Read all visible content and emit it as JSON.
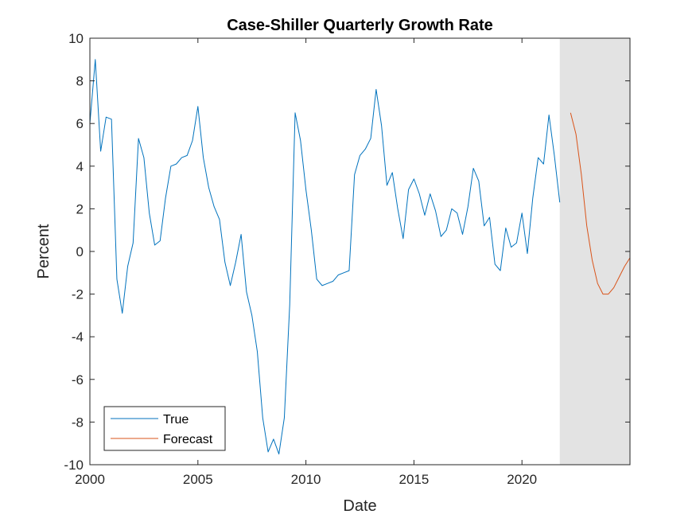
{
  "chart_data": {
    "type": "line",
    "title": "Case-Shiller Quarterly Growth Rate",
    "xlabel": "Date",
    "ylabel": "Percent",
    "xlim": [
      2000,
      2025
    ],
    "ylim": [
      -10,
      10
    ],
    "xticks": [
      2000,
      2005,
      2010,
      2015,
      2020
    ],
    "xtick_labels": [
      "2000",
      "2005",
      "2010",
      "2015",
      "2020"
    ],
    "yticks": [
      -10,
      -8,
      -6,
      -4,
      -2,
      0,
      2,
      4,
      6,
      8,
      10
    ],
    "ytick_labels": [
      "-10",
      "-8",
      "-6",
      "-4",
      "-2",
      "0",
      "2",
      "4",
      "6",
      "8",
      "10"
    ],
    "grid": false,
    "legend_position": "bottom-left",
    "forecast_region": {
      "x_start": 2021.75,
      "x_end": 2025,
      "color": "#e3e3e3"
    },
    "series": [
      {
        "name": "True",
        "color": "#0072bd",
        "x": [
          2000.0,
          2000.25,
          2000.5,
          2000.75,
          2001.0,
          2001.25,
          2001.5,
          2001.75,
          2002.0,
          2002.25,
          2002.5,
          2002.75,
          2003.0,
          2003.25,
          2003.5,
          2003.75,
          2004.0,
          2004.25,
          2004.5,
          2004.75,
          2005.0,
          2005.25,
          2005.5,
          2005.75,
          2006.0,
          2006.25,
          2006.5,
          2006.75,
          2007.0,
          2007.25,
          2007.5,
          2007.75,
          2008.0,
          2008.25,
          2008.5,
          2008.75,
          2009.0,
          2009.25,
          2009.5,
          2009.75,
          2010.0,
          2010.25,
          2010.5,
          2010.75,
          2011.0,
          2011.25,
          2011.5,
          2011.75,
          2012.0,
          2012.25,
          2012.5,
          2012.75,
          2013.0,
          2013.25,
          2013.5,
          2013.75,
          2014.0,
          2014.25,
          2014.5,
          2014.75,
          2015.0,
          2015.25,
          2015.5,
          2015.75,
          2016.0,
          2016.25,
          2016.5,
          2016.75,
          2017.0,
          2017.25,
          2017.5,
          2017.75,
          2018.0,
          2018.25,
          2018.5,
          2018.75,
          2019.0,
          2019.25,
          2019.5,
          2019.75,
          2020.0,
          2020.25,
          2020.5,
          2020.75,
          2021.0,
          2021.25,
          2021.5,
          2021.75
        ],
        "values": [
          6.0,
          9.0,
          4.7,
          6.3,
          6.2,
          -1.3,
          -2.9,
          -0.7,
          0.4,
          5.3,
          4.4,
          1.8,
          0.3,
          0.5,
          2.5,
          4.0,
          4.1,
          4.4,
          4.5,
          5.2,
          6.8,
          4.4,
          3.0,
          2.1,
          1.5,
          -0.5,
          -1.6,
          -0.5,
          0.8,
          -1.9,
          -3.0,
          -4.7,
          -7.8,
          -9.4,
          -8.8,
          -9.5,
          -7.8,
          -2.5,
          6.5,
          5.2,
          2.9,
          1.0,
          -1.3,
          -1.6,
          -1.5,
          -1.4,
          -1.1,
          -1.0,
          -0.9,
          3.6,
          4.5,
          4.8,
          5.3,
          7.6,
          5.9,
          3.1,
          3.7,
          2.0,
          0.6,
          2.9,
          3.4,
          2.7,
          1.7,
          2.7,
          1.9,
          0.7,
          1.0,
          2.0,
          1.8,
          0.8,
          2.1,
          3.9,
          3.3,
          1.2,
          1.6,
          -0.6,
          -0.9,
          1.1,
          0.2,
          0.4,
          1.8,
          -0.1,
          2.5,
          4.4,
          4.1,
          6.4,
          4.5,
          2.3
        ]
      },
      {
        "name": "Forecast",
        "color": "#d95319",
        "x": [
          2022.25,
          2022.5,
          2022.75,
          2023.0,
          2023.25,
          2023.5,
          2023.75,
          2024.0,
          2024.25,
          2024.5,
          2024.75,
          2025.0
        ],
        "values": [
          6.5,
          5.5,
          3.6,
          1.2,
          -0.4,
          -1.5,
          -2.0,
          -2.0,
          -1.7,
          -1.2,
          -0.7,
          -0.3
        ]
      }
    ]
  }
}
